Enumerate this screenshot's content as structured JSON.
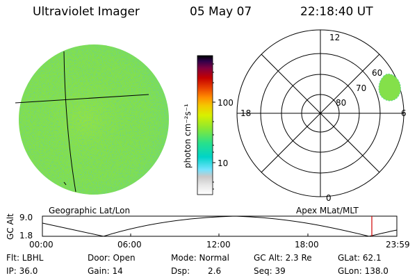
{
  "header": {
    "instrument": "Ultraviolet Imager",
    "date": "05 May 07",
    "time": "22:18:40 UT"
  },
  "colorbar": {
    "unit_label": "photon cm⁻²s⁻¹",
    "tick_labels": [
      "100",
      "10"
    ],
    "colors": [
      "#ffffff",
      "#e6e6e6",
      "#c8c8c8",
      "#73e3ff",
      "#00d4c8",
      "#28e08c",
      "#8de830",
      "#d8f000",
      "#f4c800",
      "#ff8c00",
      "#e84000",
      "#c40000",
      "#800040",
      "#30004a",
      "#000000"
    ]
  },
  "left_panel": {
    "caption": "Geographic Lat/Lon",
    "disk_color": "#84e04a"
  },
  "right_panel": {
    "caption": "Apex MLat/MLT",
    "mlt_labels": {
      "top": "12",
      "left": "18",
      "right": "6",
      "bottom": "0"
    },
    "lat_labels": [
      "60",
      "70",
      "80"
    ],
    "blob_color": "#84e04a"
  },
  "altitude_plot": {
    "ylabel": "GC Alt",
    "y_ticks": [
      "9.0",
      "1.8"
    ],
    "x_ticks": [
      "00:00",
      "06:00",
      "12:00",
      "18:00",
      "23:59"
    ],
    "marker_color": "#d00000"
  },
  "info": {
    "flt": "Flt: LBHL",
    "ip": "IP: 36.0",
    "door": "Door: Open",
    "gain": "Gain: 14",
    "mode": "Mode: Normal",
    "dsp_label": "Dsp:",
    "dsp_value": "2.6",
    "gc_alt": "GC Alt: 2.3 Re",
    "seq": "Seq: 39",
    "glat": "GLat: 62.1",
    "glon": "GLon: 138.0"
  }
}
